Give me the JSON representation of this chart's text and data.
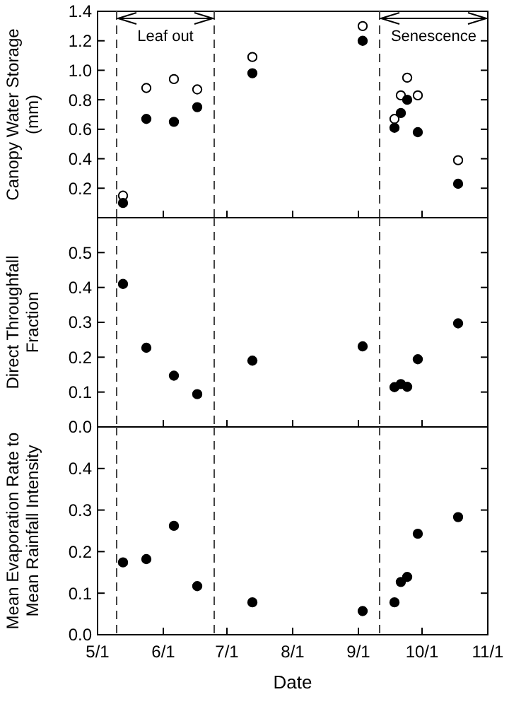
{
  "chart_data": [
    {
      "type": "scatter",
      "ylabel": "Canopy Water Storage (mm)",
      "x": [
        "--05-13",
        "--05-24",
        "--06-06",
        "--06-17",
        "--07-13",
        "--09-03",
        "--09-18",
        "--09-21",
        "--09-24",
        "--09-29",
        "--10-18"
      ],
      "series": [
        {
          "color": "#ffffff",
          "values": [
            0.15,
            0.88,
            0.94,
            0.87,
            1.09,
            1.3,
            0.67,
            0.83,
            0.95,
            0.83,
            0.39
          ]
        },
        {
          "color": "#000000",
          "values": [
            0.1,
            0.67,
            0.65,
            0.75,
            0.98,
            1.2,
            0.61,
            0.71,
            0.8,
            0.58,
            0.23
          ]
        }
      ],
      "xlim": [
        "--05-01",
        "--11-01"
      ],
      "xticks": [
        {
          "value": "--05-01",
          "label": null
        },
        {
          "value": "--06-01",
          "label": null
        },
        {
          "value": "--07-01",
          "label": null
        },
        {
          "value": "--08-01",
          "label": null
        },
        {
          "value": "--09-01",
          "label": null
        },
        {
          "value": "--10-01",
          "label": null
        },
        {
          "value": "--11-01",
          "label": null
        }
      ],
      "ylim": [
        0,
        1.4
      ],
      "yticks": [
        {
          "value": 0,
          "label": null
        },
        0.2,
        0.4,
        0.6,
        0.8,
        {
          "value": 1.0,
          "label": "1.0"
        },
        1.2,
        1.4
      ],
      "marker": "circle",
      "tick_labels": "y",
      "ref_lines": [
        {
          "axis": "x",
          "value": "--05-10",
          "line_style": "dashed"
        },
        {
          "axis": "x",
          "value": "--06-25",
          "line_style": "dashed"
        },
        {
          "axis": "x",
          "value": "--09-11",
          "line_style": "dashed"
        }
      ],
      "annotations": [
        "Leaf out",
        "Senescence"
      ]
    },
    {
      "type": "scatter",
      "ylabel": "Direct Throughfall Fraction",
      "x": [
        "--05-13",
        "--05-24",
        "--06-06",
        "--06-17",
        "--07-13",
        "--09-03",
        "--09-18",
        "--09-21",
        "--09-24",
        "--09-29",
        "--10-18"
      ],
      "series": [
        {
          "color": "#000000",
          "values": [
            0.41,
            0.227,
            0.147,
            0.094,
            0.19,
            0.231,
            0.114,
            0.123,
            0.115,
            0.194,
            0.297
          ]
        }
      ],
      "xlim": [
        "--05-01",
        "--11-01"
      ],
      "xticks": [
        {
          "value": "--05-01",
          "label": null
        },
        {
          "value": "--06-01",
          "label": null
        },
        {
          "value": "--07-01",
          "label": null
        },
        {
          "value": "--08-01",
          "label": null
        },
        {
          "value": "--09-01",
          "label": null
        },
        {
          "value": "--10-01",
          "label": null
        },
        {
          "value": "--11-01",
          "label": null
        }
      ],
      "ylim": [
        0,
        0.6
      ],
      "yticks": [
        {
          "value": 0,
          "label": "0.0"
        },
        0.1,
        0.2,
        0.3,
        0.4,
        0.5,
        {
          "value": 0.6,
          "label": null
        }
      ],
      "marker": "circle",
      "tick_labels": "y",
      "ref_lines": [
        {
          "axis": "x",
          "value": "--05-10",
          "line_style": "dashed"
        },
        {
          "axis": "x",
          "value": "--06-25",
          "line_style": "dashed"
        },
        {
          "axis": "x",
          "value": "--09-11",
          "line_style": "dashed"
        }
      ]
    },
    {
      "type": "scatter",
      "ylabel": "Mean Evaporation Rate to Mean Rainfall Intensity",
      "xlabel": "Date",
      "x": [
        "--05-13",
        "--05-24",
        "--06-06",
        "--06-17",
        "--07-13",
        "--09-03",
        "--09-18",
        "--09-21",
        "--09-24",
        "--09-29",
        "--10-18"
      ],
      "series": [
        {
          "color": "#000000",
          "values": [
            0.174,
            0.182,
            0.262,
            0.117,
            0.078,
            0.057,
            0.078,
            0.127,
            0.139,
            0.243,
            0.283
          ]
        }
      ],
      "xlim": [
        "--05-01",
        "--11-01"
      ],
      "xticks": [
        {
          "value": "--05-01",
          "label": "5/1"
        },
        {
          "value": "--06-01",
          "label": "6/1"
        },
        {
          "value": "--07-01",
          "label": "7/1"
        },
        {
          "value": "--08-01",
          "label": "8/1"
        },
        {
          "value": "--09-01",
          "label": "9/1"
        },
        {
          "value": "--10-01",
          "label": "10/1"
        },
        {
          "value": "--11-01",
          "label": "11/1"
        }
      ],
      "ylim": [
        0,
        0.5
      ],
      "yticks": [
        {
          "value": 0,
          "label": "0.0"
        },
        0.1,
        0.2,
        0.3,
        0.4,
        {
          "value": 0.5,
          "label": null
        }
      ],
      "marker": "circle",
      "ref_lines": [
        {
          "axis": "x",
          "value": "--05-10",
          "line_style": "dashed"
        },
        {
          "axis": "x",
          "value": "--06-25",
          "line_style": "dashed"
        },
        {
          "axis": "x",
          "value": "--09-11",
          "line_style": "dashed"
        }
      ]
    }
  ]
}
